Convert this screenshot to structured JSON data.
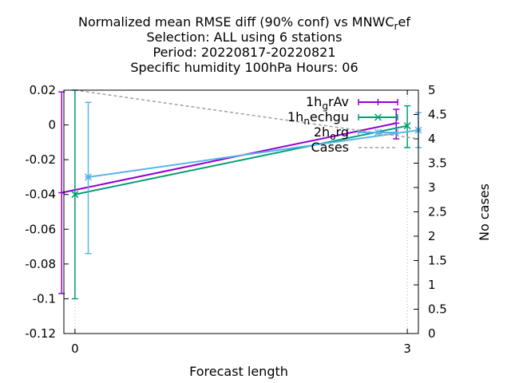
{
  "title_lines": [
    "Normalized mean RMSE diff (90% conf) vs MNWC_ref",
    "Selection: ALL using     6 stations",
    "Period: 20220817-20220821",
    "Specific humidity 100hPa   Hours:  06"
  ],
  "chart_data": {
    "type": "line",
    "xlabel": "Forecast length",
    "ylabel": "",
    "y2label": "No cases",
    "xlim": [
      -0.1,
      3.1
    ],
    "ylim": [
      -0.12,
      0.02
    ],
    "y2lim": [
      0,
      5
    ],
    "x_ticks": [
      0,
      3
    ],
    "x_tick_labels": [
      "0",
      "3"
    ],
    "y_ticks": [
      0.02,
      0,
      -0.02,
      -0.04,
      -0.06,
      -0.08,
      -0.1,
      -0.12
    ],
    "y_tick_labels": [
      "0.02",
      "0",
      "-0.02",
      "-0.04",
      "-0.06",
      "-0.08",
      "-0.1",
      "-0.12"
    ],
    "y2_ticks": [
      5,
      4.5,
      4,
      3.5,
      3,
      2.5,
      2,
      1.5,
      1,
      0.5,
      0
    ],
    "y2_tick_labels": [
      "5",
      "4.5",
      "4",
      "3.5",
      "3",
      "2.5",
      "2",
      "1.5",
      "1",
      "0.5",
      "0"
    ],
    "grid": "vertical dotted at x ticks",
    "legend_position": "top-right",
    "series": [
      {
        "name": "1h_grAv",
        "color": "#9400d3",
        "marker": "plus",
        "x": [
          -0.12,
          2.9
        ],
        "y": [
          -0.039,
          0.001
        ],
        "err_low": [
          -0.097,
          -0.008
        ],
        "err_high": [
          0.019,
          0.009
        ]
      },
      {
        "name": "1h_nechgu",
        "color": "#009e73",
        "marker": "cross",
        "x": [
          0.0,
          3.0
        ],
        "y": [
          -0.04,
          -0.0005
        ],
        "err_low": [
          -0.1,
          -0.013
        ],
        "err_high": [
          0.02,
          0.011
        ]
      },
      {
        "name": "2h_org",
        "color": "#56b4e9",
        "marker": "star",
        "x": [
          0.12,
          3.1
        ],
        "y": [
          -0.03,
          -0.003
        ],
        "err_low": [
          -0.074,
          -0.013
        ],
        "err_high": [
          0.013,
          0.007
        ]
      },
      {
        "name": "Cases",
        "color": "#a0a0a0",
        "dash": true,
        "axis": "y2",
        "x": [
          0.0,
          3.1
        ],
        "y": [
          5.0,
          4.0
        ]
      }
    ]
  },
  "legend": [
    {
      "base": "1h",
      "sub": "g",
      "rest": "rAv"
    },
    {
      "base": "1h",
      "sub": "n",
      "rest": "echgu"
    },
    {
      "base": "2h",
      "sub": "o",
      "rest": "rg"
    },
    {
      "base": "Cases",
      "sub": "",
      "rest": ""
    }
  ]
}
